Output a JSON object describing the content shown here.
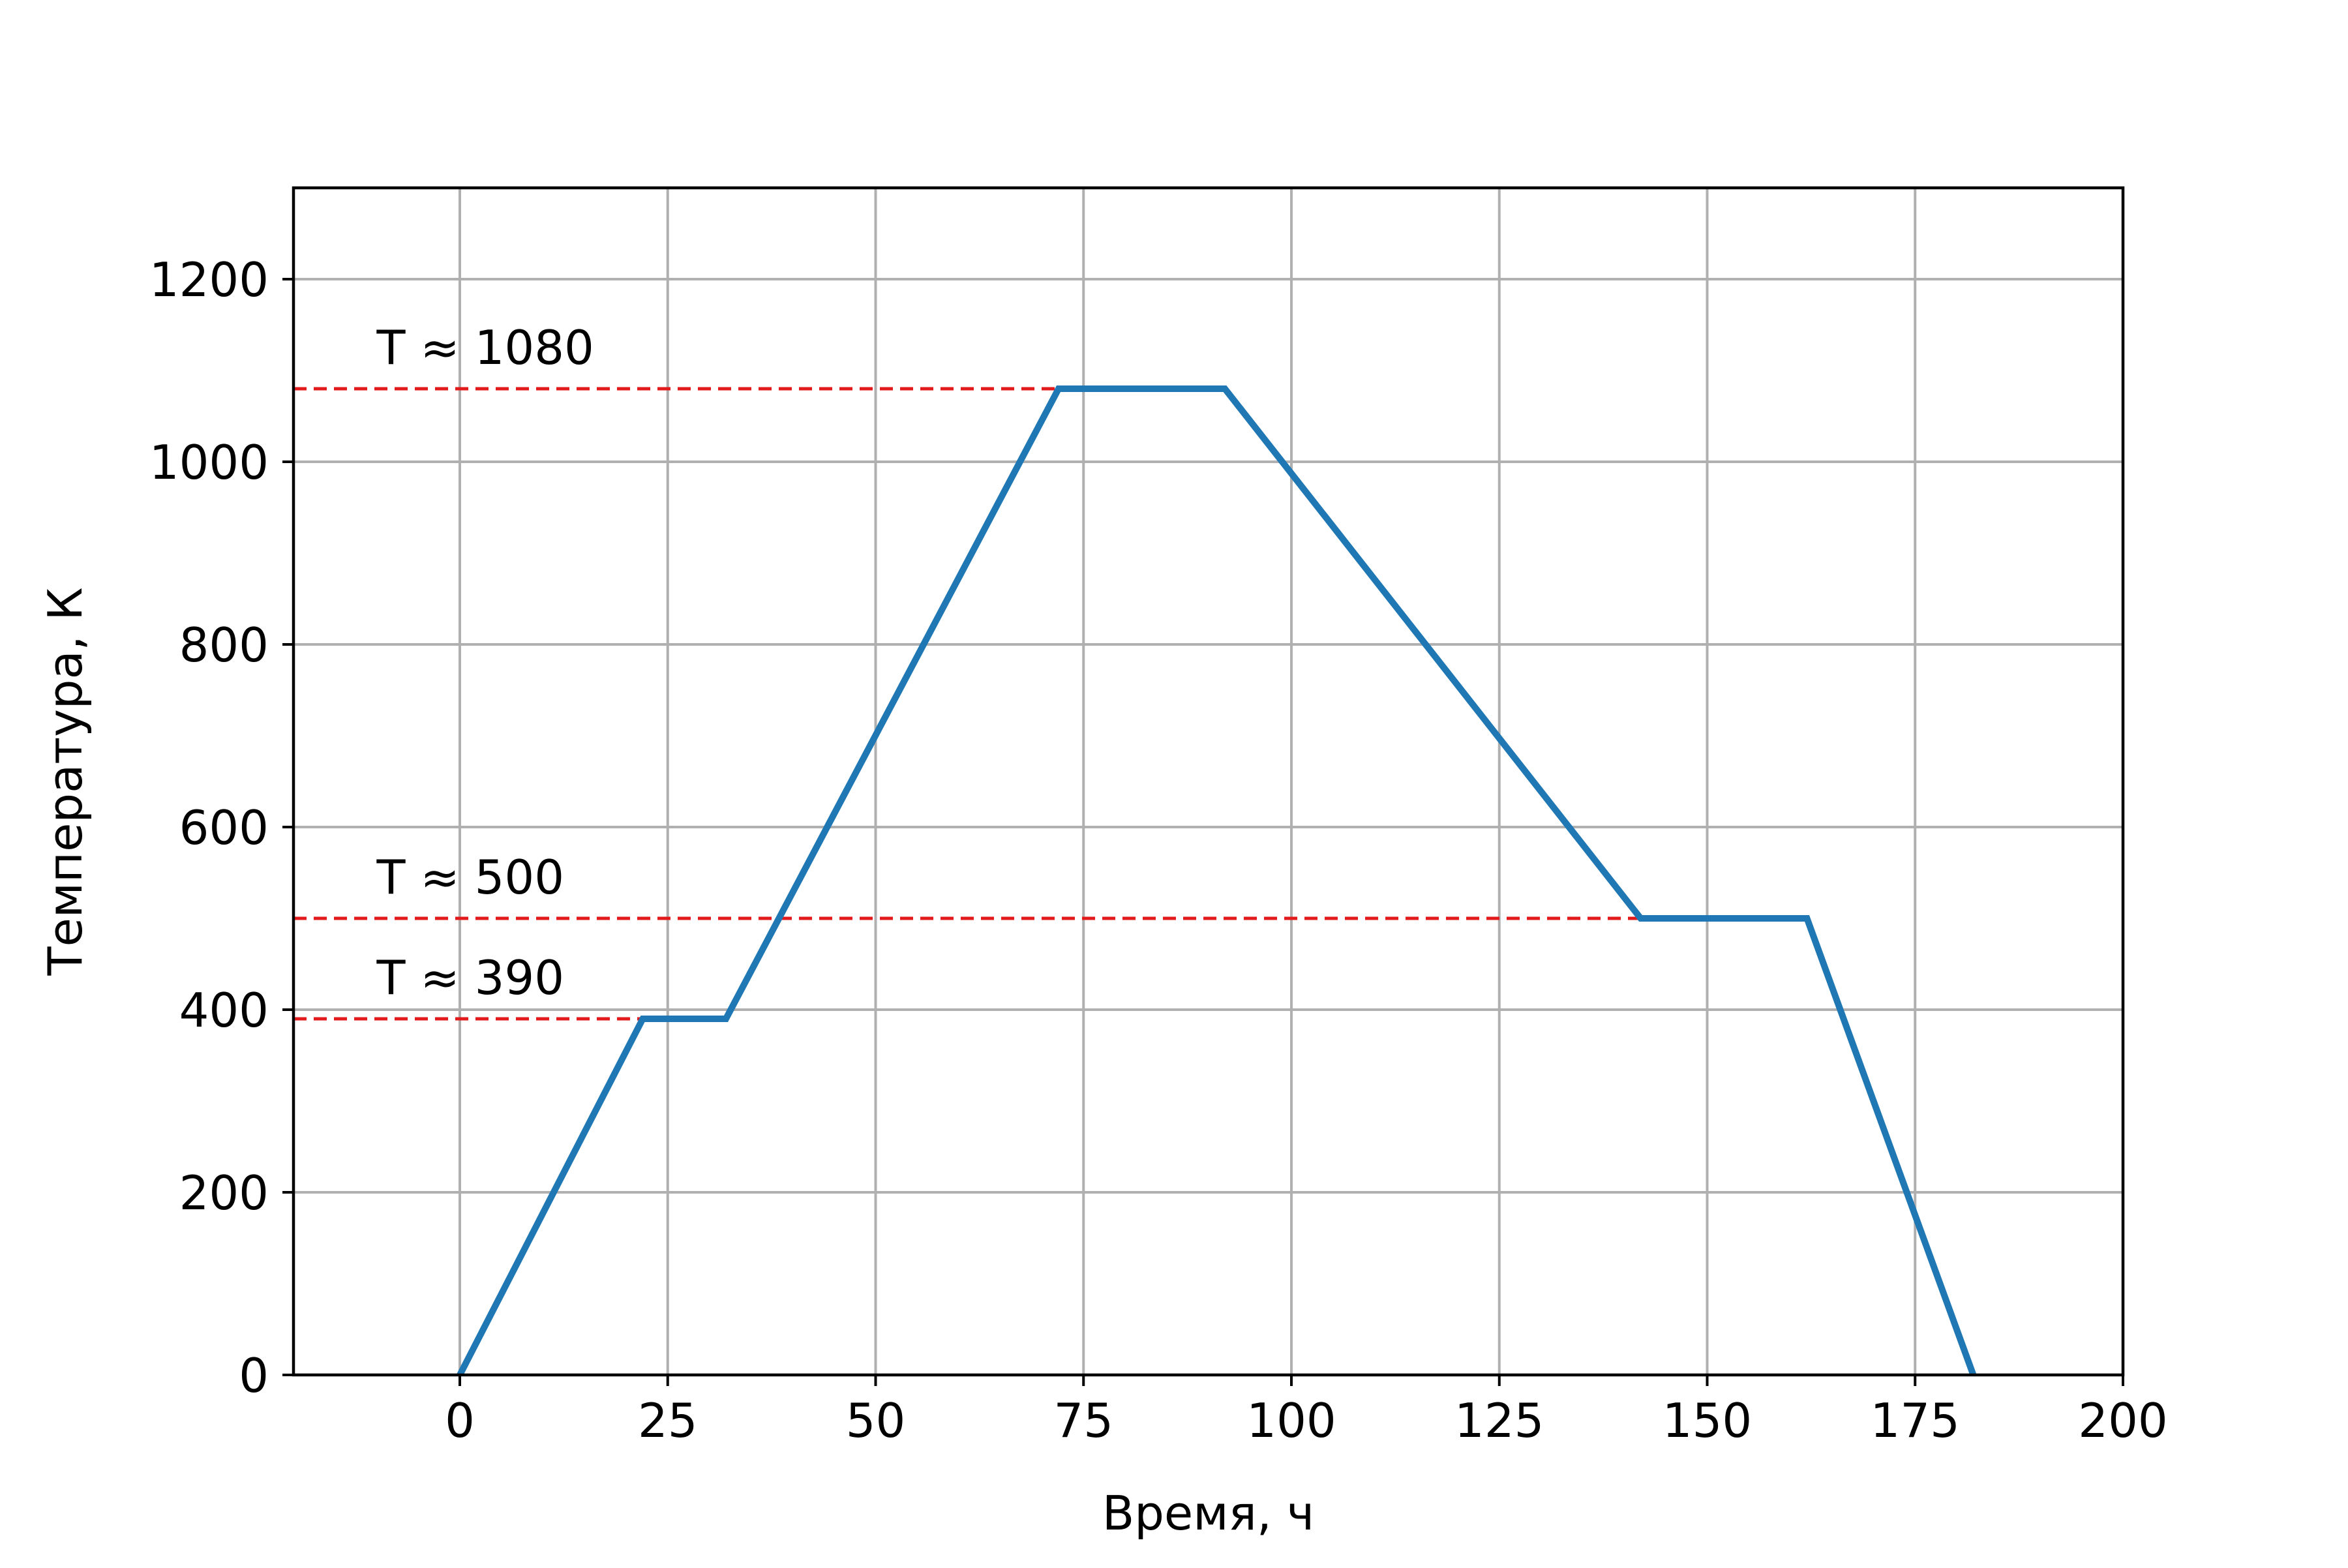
{
  "chart_data": {
    "type": "line",
    "title": "",
    "xlabel": "Время, ч",
    "ylabel": "Температура, К",
    "xlim": [
      -20,
      200
    ],
    "ylim": [
      0,
      1300
    ],
    "xticks": [
      0,
      25,
      50,
      75,
      100,
      125,
      150,
      175,
      200
    ],
    "yticks": [
      0,
      200,
      400,
      600,
      800,
      1000,
      1200
    ],
    "grid": true,
    "series": [
      {
        "color": "#1f77b4",
        "x": [
          0,
          22,
          32,
          72,
          92,
          142,
          162,
          182
        ],
        "y": [
          0,
          390,
          390,
          1080,
          1080,
          500,
          500,
          0
        ]
      }
    ],
    "reference_lines": [
      {
        "y": 1080,
        "x_end": 72,
        "label": "T ≈ 1080",
        "color": "#e31a1c",
        "style": "dashed"
      },
      {
        "y": 500,
        "x_end": 142,
        "label": "T ≈ 500",
        "color": "#e31a1c",
        "style": "dashed"
      },
      {
        "y": 390,
        "x_end": 22,
        "label": "T ≈ 390",
        "color": "#e31a1c",
        "style": "dashed"
      }
    ]
  }
}
